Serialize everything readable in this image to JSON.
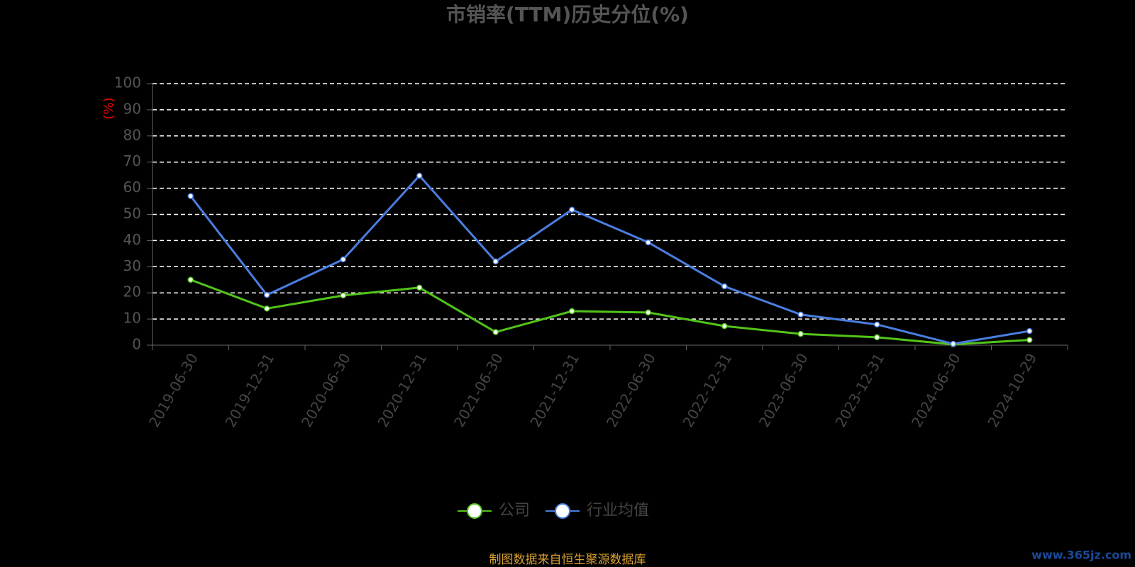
{
  "chart_data": {
    "type": "line",
    "title": "市销率(TTM)历史分位(%)",
    "y_label": "(%)",
    "categories": [
      "2019-06-30",
      "2019-12-31",
      "2020-06-30",
      "2020-12-31",
      "2021-06-30",
      "2021-12-31",
      "2022-06-30",
      "2022-12-31",
      "2023-06-30",
      "2023-12-31",
      "2024-06-30",
      "2024-10-29"
    ],
    "series": [
      {
        "name": "公司",
        "color": "#52c41a",
        "values": [
          25,
          14,
          19,
          22,
          5,
          13,
          12.5,
          7.3,
          4.3,
          3,
          0.3,
          2
        ]
      },
      {
        "name": "行业均值",
        "color": "#4a7ee0",
        "values": [
          57,
          19.2,
          32.8,
          64.8,
          32,
          51.8,
          39.3,
          22.5,
          11.7,
          7.9,
          0.5,
          5.4
        ]
      }
    ],
    "ylim": [
      0,
      100
    ],
    "yticks": [
      0,
      10,
      20,
      30,
      40,
      50,
      60,
      70,
      80,
      90,
      100
    ],
    "grid": true,
    "legend": "bottom",
    "source": "制图数据来自恒生聚源数据库",
    "watermark": "www.365jz.com"
  }
}
